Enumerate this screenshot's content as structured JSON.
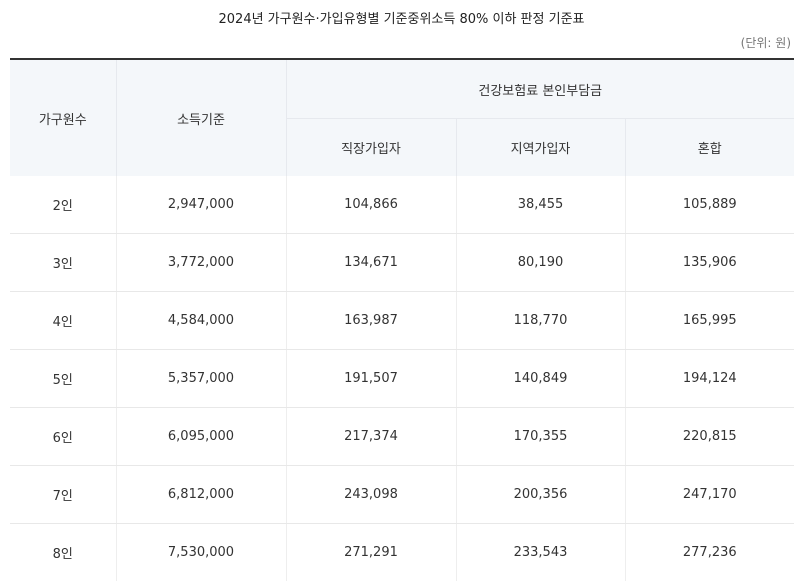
{
  "title": "2024년 가구원수·가입유형별 기준중위소득 80% 이하 판정 기준표",
  "unit": "(단위: 원)",
  "headers": {
    "household": "가구원수",
    "income": "소득기준",
    "premium_group": "건강보험료 본인부담금",
    "employee": "직장가입자",
    "regional": "지역가입자",
    "mixed": "혼합"
  },
  "rows": [
    {
      "household": "2인",
      "income": "2,947,000",
      "employee": "104,866",
      "regional": "38,455",
      "mixed": "105,889"
    },
    {
      "household": "3인",
      "income": "3,772,000",
      "employee": "134,671",
      "regional": "80,190",
      "mixed": "135,906"
    },
    {
      "household": "4인",
      "income": "4,584,000",
      "employee": "163,987",
      "regional": "118,770",
      "mixed": "165,995"
    },
    {
      "household": "5인",
      "income": "5,357,000",
      "employee": "191,507",
      "regional": "140,849",
      "mixed": "194,124"
    },
    {
      "household": "6인",
      "income": "6,095,000",
      "employee": "217,374",
      "regional": "170,355",
      "mixed": "220,815"
    },
    {
      "household": "7인",
      "income": "6,812,000",
      "employee": "243,098",
      "regional": "200,356",
      "mixed": "247,170"
    },
    {
      "household": "8인",
      "income": "7,530,000",
      "employee": "271,291",
      "regional": "233,543",
      "mixed": "277,236"
    }
  ]
}
